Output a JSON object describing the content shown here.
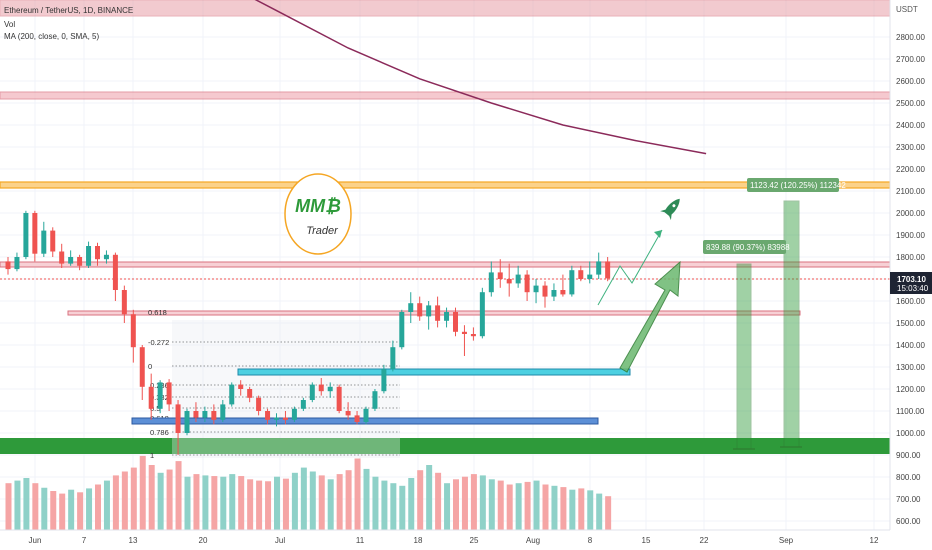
{
  "header": {
    "symbol": "Ethereum / TetherUS, 1D, BINANCE",
    "vol_label": "Vol",
    "ma_label": "MA (200, close, 0, SMA, 5)"
  },
  "logo": {
    "letters": "MM₿",
    "subtitle": "Trader"
  },
  "axis": {
    "currency": "USDT",
    "y_ticks": [
      "2800.00",
      "2700.00",
      "2600.00",
      "2500.00",
      "2400.00",
      "2300.00",
      "2200.00",
      "2100.00",
      "2000.00",
      "1900.00",
      "1800.00",
      "1700.00",
      "1600.00",
      "1500.00",
      "1400.00",
      "1300.00",
      "1200.00",
      "1100.00",
      "1000.00",
      "900.00",
      "800.00",
      "700.00",
      "600.00"
    ],
    "x_ticks": [
      "Jun",
      "7",
      "13",
      "20",
      "Jul",
      "11",
      "18",
      "25",
      "Aug",
      "8",
      "15",
      "22",
      "Sep",
      "12"
    ],
    "price_tag": "1703.10",
    "countdown": "15:03:40"
  },
  "fib_levels": [
    "0.618",
    "-0.272",
    "0",
    "0.236",
    "0.382",
    "0.5",
    "0.618",
    "0.786",
    "1"
  ],
  "measures": {
    "near": "839.88 (90.37%) 83988",
    "far": "1123.42 (120.25%) 112342"
  },
  "colors": {
    "up": "#26a69a",
    "down": "#ef5350",
    "vol_up": "#8fd1c8",
    "vol_down": "#f5a5a5",
    "ma": "#8b2a5a",
    "support_green": "#2e9a3a",
    "cyan_zone": "#4dd0e1",
    "blue_zone": "#5c8fd6",
    "resistance_red": "#e8a0a8",
    "orange_zone": "#f5a623",
    "rocket": "#2e8b57"
  },
  "chart_data": {
    "type": "candlestick",
    "ohlc": [
      {
        "o": 1780,
        "h": 1800,
        "l": 1720,
        "c": 1745
      },
      {
        "o": 1745,
        "h": 1820,
        "l": 1735,
        "c": 1800
      },
      {
        "o": 1800,
        "h": 2010,
        "l": 1790,
        "c": 2000
      },
      {
        "o": 2000,
        "h": 2010,
        "l": 1780,
        "c": 1815
      },
      {
        "o": 1815,
        "h": 1960,
        "l": 1800,
        "c": 1920
      },
      {
        "o": 1920,
        "h": 1935,
        "l": 1800,
        "c": 1825
      },
      {
        "o": 1825,
        "h": 1860,
        "l": 1750,
        "c": 1770
      },
      {
        "o": 1770,
        "h": 1830,
        "l": 1760,
        "c": 1800
      },
      {
        "o": 1800,
        "h": 1810,
        "l": 1740,
        "c": 1760
      },
      {
        "o": 1760,
        "h": 1870,
        "l": 1750,
        "c": 1850
      },
      {
        "o": 1850,
        "h": 1865,
        "l": 1760,
        "c": 1790
      },
      {
        "o": 1790,
        "h": 1830,
        "l": 1770,
        "c": 1810
      },
      {
        "o": 1810,
        "h": 1820,
        "l": 1600,
        "c": 1650
      },
      {
        "o": 1650,
        "h": 1670,
        "l": 1500,
        "c": 1540
      },
      {
        "o": 1540,
        "h": 1560,
        "l": 1320,
        "c": 1390
      },
      {
        "o": 1390,
        "h": 1400,
        "l": 1150,
        "c": 1210
      },
      {
        "o": 1210,
        "h": 1270,
        "l": 1060,
        "c": 1110
      },
      {
        "o": 1110,
        "h": 1240,
        "l": 1090,
        "c": 1230
      },
      {
        "o": 1230,
        "h": 1245,
        "l": 1100,
        "c": 1130
      },
      {
        "o": 1130,
        "h": 1150,
        "l": 900,
        "c": 1000
      },
      {
        "o": 1000,
        "h": 1110,
        "l": 990,
        "c": 1100
      },
      {
        "o": 1100,
        "h": 1140,
        "l": 1050,
        "c": 1070
      },
      {
        "o": 1070,
        "h": 1120,
        "l": 1050,
        "c": 1100
      },
      {
        "o": 1100,
        "h": 1130,
        "l": 1040,
        "c": 1060
      },
      {
        "o": 1060,
        "h": 1150,
        "l": 1050,
        "c": 1130
      },
      {
        "o": 1130,
        "h": 1230,
        "l": 1120,
        "c": 1220
      },
      {
        "o": 1220,
        "h": 1240,
        "l": 1170,
        "c": 1200
      },
      {
        "o": 1200,
        "h": 1210,
        "l": 1140,
        "c": 1160
      },
      {
        "o": 1160,
        "h": 1170,
        "l": 1080,
        "c": 1100
      },
      {
        "o": 1100,
        "h": 1110,
        "l": 1040,
        "c": 1060
      },
      {
        "o": 1060,
        "h": 1090,
        "l": 1030,
        "c": 1070
      },
      {
        "o": 1070,
        "h": 1100,
        "l": 1040,
        "c": 1060
      },
      {
        "o": 1060,
        "h": 1120,
        "l": 1050,
        "c": 1110
      },
      {
        "o": 1110,
        "h": 1160,
        "l": 1100,
        "c": 1150
      },
      {
        "o": 1150,
        "h": 1230,
        "l": 1140,
        "c": 1220
      },
      {
        "o": 1220,
        "h": 1250,
        "l": 1170,
        "c": 1190
      },
      {
        "o": 1190,
        "h": 1230,
        "l": 1160,
        "c": 1210
      },
      {
        "o": 1210,
        "h": 1220,
        "l": 1090,
        "c": 1100
      },
      {
        "o": 1100,
        "h": 1140,
        "l": 1060,
        "c": 1080
      },
      {
        "o": 1080,
        "h": 1100,
        "l": 1040,
        "c": 1050
      },
      {
        "o": 1050,
        "h": 1120,
        "l": 1040,
        "c": 1110
      },
      {
        "o": 1110,
        "h": 1200,
        "l": 1100,
        "c": 1190
      },
      {
        "o": 1190,
        "h": 1310,
        "l": 1180,
        "c": 1290
      },
      {
        "o": 1290,
        "h": 1420,
        "l": 1280,
        "c": 1390
      },
      {
        "o": 1390,
        "h": 1560,
        "l": 1380,
        "c": 1550
      },
      {
        "o": 1550,
        "h": 1640,
        "l": 1500,
        "c": 1590
      },
      {
        "o": 1590,
        "h": 1620,
        "l": 1510,
        "c": 1530
      },
      {
        "o": 1530,
        "h": 1600,
        "l": 1470,
        "c": 1580
      },
      {
        "o": 1580,
        "h": 1620,
        "l": 1480,
        "c": 1510
      },
      {
        "o": 1510,
        "h": 1570,
        "l": 1480,
        "c": 1550
      },
      {
        "o": 1550,
        "h": 1570,
        "l": 1440,
        "c": 1460
      },
      {
        "o": 1460,
        "h": 1490,
        "l": 1350,
        "c": 1450
      },
      {
        "o": 1450,
        "h": 1480,
        "l": 1420,
        "c": 1440
      },
      {
        "o": 1440,
        "h": 1660,
        "l": 1430,
        "c": 1640
      },
      {
        "o": 1640,
        "h": 1780,
        "l": 1620,
        "c": 1730
      },
      {
        "o": 1730,
        "h": 1790,
        "l": 1660,
        "c": 1700
      },
      {
        "o": 1700,
        "h": 1770,
        "l": 1620,
        "c": 1680
      },
      {
        "o": 1680,
        "h": 1760,
        "l": 1660,
        "c": 1720
      },
      {
        "o": 1720,
        "h": 1740,
        "l": 1600,
        "c": 1640
      },
      {
        "o": 1640,
        "h": 1700,
        "l": 1590,
        "c": 1670
      },
      {
        "o": 1670,
        "h": 1690,
        "l": 1570,
        "c": 1620
      },
      {
        "o": 1620,
        "h": 1680,
        "l": 1600,
        "c": 1650
      },
      {
        "o": 1650,
        "h": 1720,
        "l": 1620,
        "c": 1630
      },
      {
        "o": 1630,
        "h": 1760,
        "l": 1620,
        "c": 1740
      },
      {
        "o": 1740,
        "h": 1760,
        "l": 1690,
        "c": 1700
      },
      {
        "o": 1700,
        "h": 1780,
        "l": 1680,
        "c": 1720
      },
      {
        "o": 1720,
        "h": 1820,
        "l": 1700,
        "c": 1780
      },
      {
        "o": 1780,
        "h": 1800,
        "l": 1690,
        "c": 1703
      }
    ],
    "volume": [
      720,
      760,
      800,
      720,
      650,
      600,
      560,
      620,
      580,
      640,
      700,
      760,
      840,
      900,
      960,
      1140,
      1000,
      880,
      930,
      1060,
      820,
      860,
      840,
      830,
      820,
      860,
      830,
      780,
      760,
      750,
      820,
      790,
      880,
      960,
      900,
      840,
      780,
      860,
      920,
      1100,
      940,
      820,
      760,
      720,
      680,
      800,
      920,
      1000,
      880,
      720,
      780,
      820,
      860,
      840,
      780,
      760,
      700,
      720,
      740,
      760,
      700,
      680,
      660,
      620,
      640,
      610,
      560,
      520
    ],
    "ma200": [
      {
        "x": 22,
        "y": 3090
      },
      {
        "x": 30,
        "y": 2920
      },
      {
        "x": 38,
        "y": 2750
      },
      {
        "x": 46,
        "y": 2610
      },
      {
        "x": 54,
        "y": 2500
      },
      {
        "x": 62,
        "y": 2400
      },
      {
        "x": 70,
        "y": 2330
      },
      {
        "x": 78,
        "y": 2270
      }
    ],
    "y_range": [
      560,
      2970
    ]
  }
}
